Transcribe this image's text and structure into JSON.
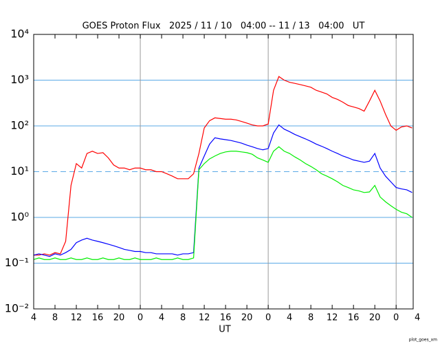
{
  "chart_data": {
    "type": "line",
    "title": "GOES Proton Flux   2025 / 11 / 10   04:00 -- 11 / 13   04:00   UT",
    "x_label": "UT",
    "footer": "plot_goes_xm",
    "log_y": true,
    "ylim": [
      0.01,
      10000
    ],
    "yticks": [
      {
        "value": 0.01,
        "label": "10⁻²"
      },
      {
        "value": 0.1,
        "label": "10⁻¹"
      },
      {
        "value": 1,
        "label": "10⁰"
      },
      {
        "value": 10,
        "label": "10¹"
      },
      {
        "value": 100,
        "label": "10²"
      },
      {
        "value": 1000,
        "label": "10³"
      },
      {
        "value": 10000,
        "label": "10⁴"
      }
    ],
    "xlim": [
      0,
      71.2
    ],
    "xticks": [
      {
        "value": 0,
        "label": "4"
      },
      {
        "value": 4,
        "label": "8"
      },
      {
        "value": 8,
        "label": "12"
      },
      {
        "value": 12,
        "label": "16"
      },
      {
        "value": 16,
        "label": "20"
      },
      {
        "value": 20,
        "label": "0"
      },
      {
        "value": 24,
        "label": "4"
      },
      {
        "value": 28,
        "label": "8"
      },
      {
        "value": 32,
        "label": "12"
      },
      {
        "value": 36,
        "label": "16"
      },
      {
        "value": 40,
        "label": "20"
      },
      {
        "value": 44,
        "label": "0"
      },
      {
        "value": 48,
        "label": "4"
      },
      {
        "value": 52,
        "label": "8"
      },
      {
        "value": 56,
        "label": "12"
      },
      {
        "value": 60,
        "label": "16"
      },
      {
        "value": 64,
        "label": "20"
      },
      {
        "value": 68,
        "label": "0"
      },
      {
        "value": 72,
        "label": "4"
      }
    ],
    "day_lines": [
      20,
      44,
      68
    ],
    "threshold": 10,
    "grid_color": "#5aa9e6",
    "x": [
      0,
      1,
      2,
      3,
      4,
      5,
      6,
      7,
      8,
      9,
      10,
      11,
      12,
      13,
      14,
      15,
      16,
      17,
      18,
      19,
      20,
      21,
      22,
      23,
      24,
      25,
      26,
      27,
      28,
      29,
      30,
      31,
      32,
      33,
      34,
      35,
      36,
      37,
      38,
      39,
      40,
      41,
      42,
      43,
      44,
      45,
      46,
      47,
      48,
      49,
      50,
      51,
      52,
      53,
      54,
      55,
      56,
      57,
      58,
      59,
      60,
      61,
      62,
      63,
      64,
      65,
      66,
      67,
      68,
      69,
      70,
      71
    ],
    "series": [
      {
        "color": "#ff0000",
        "values": [
          0.15,
          0.15,
          0.16,
          0.15,
          0.17,
          0.16,
          0.3,
          5,
          15,
          12,
          25,
          28,
          25,
          26,
          20,
          14,
          12,
          12,
          11,
          12,
          12,
          11,
          11,
          10,
          10,
          9,
          8,
          7,
          7,
          7,
          9,
          25,
          90,
          130,
          150,
          145,
          140,
          140,
          135,
          125,
          115,
          105,
          100,
          100,
          110,
          600,
          1200,
          1000,
          900,
          850,
          800,
          750,
          700,
          600,
          550,
          500,
          420,
          380,
          330,
          280,
          260,
          240,
          210,
          350,
          600,
          350,
          180,
          100,
          80,
          95,
          100,
          90
        ]
      },
      {
        "color": "#0000ff",
        "values": [
          0.15,
          0.16,
          0.15,
          0.14,
          0.16,
          0.15,
          0.17,
          0.2,
          0.28,
          0.32,
          0.35,
          0.32,
          0.3,
          0.28,
          0.26,
          0.24,
          0.22,
          0.2,
          0.19,
          0.18,
          0.18,
          0.17,
          0.17,
          0.16,
          0.16,
          0.16,
          0.16,
          0.15,
          0.16,
          0.16,
          0.17,
          12,
          22,
          40,
          55,
          52,
          50,
          48,
          45,
          42,
          38,
          35,
          32,
          30,
          32,
          70,
          105,
          85,
          75,
          65,
          58,
          52,
          46,
          40,
          36,
          32,
          28,
          25,
          22,
          20,
          18,
          17,
          16,
          17,
          25,
          12,
          8,
          6,
          4.5,
          4.2,
          4,
          3.5
        ]
      },
      {
        "color": "#00ee00",
        "values": [
          0.12,
          0.13,
          0.12,
          0.12,
          0.13,
          0.12,
          0.12,
          0.13,
          0.12,
          0.12,
          0.13,
          0.12,
          0.12,
          0.13,
          0.12,
          0.12,
          0.13,
          0.12,
          0.12,
          0.13,
          0.12,
          0.12,
          0.12,
          0.13,
          0.12,
          0.12,
          0.12,
          0.13,
          0.12,
          0.12,
          0.13,
          11,
          15,
          19,
          22,
          25,
          27,
          28,
          28,
          27,
          26,
          24,
          20,
          18,
          16,
          28,
          35,
          28,
          25,
          21,
          18,
          15,
          13,
          11,
          9,
          8,
          7,
          6,
          5,
          4.5,
          4,
          3.8,
          3.5,
          3.6,
          5,
          2.8,
          2.2,
          1.8,
          1.5,
          1.3,
          1.2,
          1
        ]
      }
    ]
  }
}
